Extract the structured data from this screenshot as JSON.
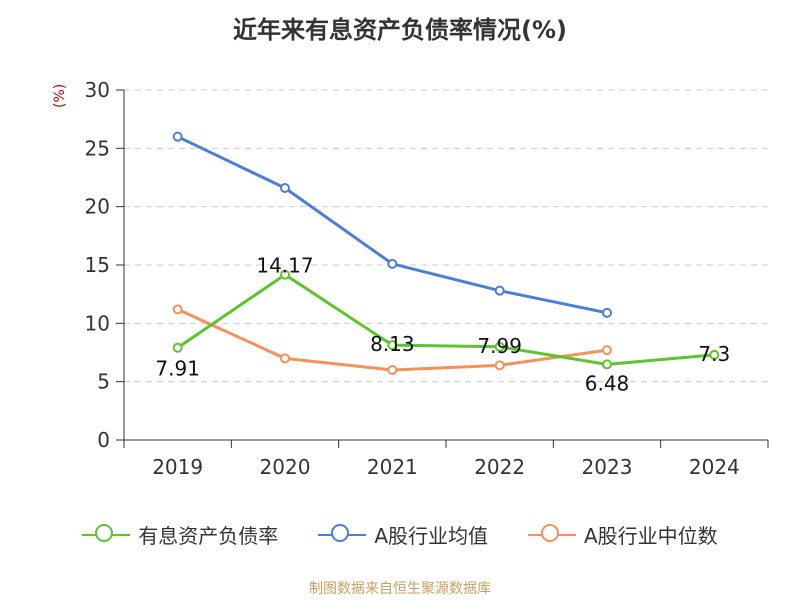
{
  "title": "近年来有息资产负债率情况(%)",
  "unit_label": "(%)",
  "source": "制图数据来自恒生聚源数据库",
  "chart_data": {
    "type": "line",
    "title": "近年来有息资产负债率情况(%)",
    "ylabel": "(%)",
    "xlabel": "",
    "categories": [
      "2019",
      "2020",
      "2021",
      "2022",
      "2023",
      "2024"
    ],
    "ylim": [
      0,
      30
    ],
    "yticks": [
      0,
      5,
      10,
      15,
      20,
      25,
      30
    ],
    "grid": true,
    "legend_position": "bottom",
    "series": [
      {
        "name": "有息资产负债率",
        "color": "#5cc52e",
        "values": [
          7.91,
          14.17,
          8.13,
          7.99,
          6.48,
          7.3
        ],
        "labels": [
          "7.91",
          "14.17",
          "8.13",
          "7.99",
          "6.48",
          "7.3"
        ]
      },
      {
        "name": "A股行业均值",
        "color": "#4a7fd8",
        "values": [
          26.0,
          21.6,
          15.1,
          12.8,
          10.9,
          null
        ]
      },
      {
        "name": "A股行业中位数",
        "color": "#f59159",
        "values": [
          11.2,
          7.0,
          6.0,
          6.4,
          7.7,
          null
        ]
      }
    ]
  }
}
